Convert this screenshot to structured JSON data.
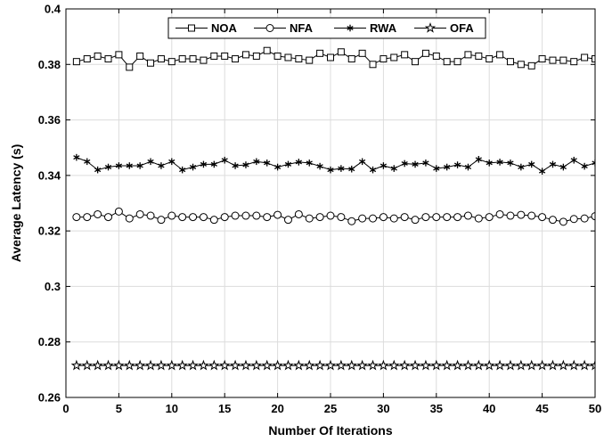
{
  "chart_data": {
    "type": "line",
    "xlabel": "Number Of Iterations",
    "ylabel": "Average Latency (s)",
    "xlim": [
      0,
      50
    ],
    "ylim": [
      0.26,
      0.4
    ],
    "xticks": [
      "0",
      "5",
      "10",
      "15",
      "20",
      "25",
      "30",
      "35",
      "40",
      "45",
      "50"
    ],
    "yticks": [
      "0.26",
      "0.28",
      "0.3",
      "0.32",
      "0.34",
      "0.36",
      "0.38",
      "0.4"
    ],
    "grid": true,
    "legend_position": "top",
    "x": [
      1,
      2,
      3,
      4,
      5,
      6,
      7,
      8,
      9,
      10,
      11,
      12,
      13,
      14,
      15,
      16,
      17,
      18,
      19,
      20,
      21,
      22,
      23,
      24,
      25,
      26,
      27,
      28,
      29,
      30,
      31,
      32,
      33,
      34,
      35,
      36,
      37,
      38,
      39,
      40,
      41,
      42,
      43,
      44,
      45,
      46,
      47,
      48,
      49,
      50
    ],
    "series": [
      {
        "name": "NOA",
        "marker": "square",
        "values": [
          0.381,
          0.382,
          0.383,
          0.382,
          0.3835,
          0.379,
          0.383,
          0.3805,
          0.382,
          0.381,
          0.382,
          0.382,
          0.3815,
          0.383,
          0.383,
          0.382,
          0.3835,
          0.383,
          0.385,
          0.383,
          0.3825,
          0.382,
          0.3815,
          0.384,
          0.3825,
          0.3845,
          0.382,
          0.384,
          0.38,
          0.382,
          0.3825,
          0.3835,
          0.381,
          0.384,
          0.383,
          0.381,
          0.381,
          0.3835,
          0.383,
          0.382,
          0.3835,
          0.381,
          0.38,
          0.3795,
          0.382,
          0.3815,
          0.3815,
          0.381,
          0.3825,
          0.382
        ]
      },
      {
        "name": "NFA",
        "marker": "circle",
        "values": [
          0.325,
          0.325,
          0.326,
          0.325,
          0.327,
          0.3245,
          0.326,
          0.3255,
          0.324,
          0.3255,
          0.325,
          0.325,
          0.325,
          0.324,
          0.325,
          0.3255,
          0.3255,
          0.3255,
          0.325,
          0.3258,
          0.324,
          0.326,
          0.3245,
          0.325,
          0.3255,
          0.325,
          0.3235,
          0.3245,
          0.3245,
          0.325,
          0.3245,
          0.325,
          0.324,
          0.325,
          0.325,
          0.325,
          0.325,
          0.3255,
          0.3245,
          0.325,
          0.326,
          0.3255,
          0.3258,
          0.3255,
          0.325,
          0.324,
          0.3233,
          0.3243,
          0.3245,
          0.3253
        ]
      },
      {
        "name": "RWA",
        "marker": "star6",
        "values": [
          0.3465,
          0.345,
          0.342,
          0.343,
          0.3435,
          0.3435,
          0.3435,
          0.345,
          0.3435,
          0.345,
          0.342,
          0.343,
          0.344,
          0.344,
          0.3455,
          0.3435,
          0.3438,
          0.345,
          0.3445,
          0.343,
          0.344,
          0.3448,
          0.3445,
          0.3433,
          0.342,
          0.3425,
          0.3423,
          0.345,
          0.342,
          0.3435,
          0.3425,
          0.3443,
          0.344,
          0.3445,
          0.3425,
          0.343,
          0.3438,
          0.343,
          0.3458,
          0.3445,
          0.3448,
          0.3445,
          0.343,
          0.344,
          0.3415,
          0.344,
          0.343,
          0.3455,
          0.3433,
          0.3445
        ]
      },
      {
        "name": "OFA",
        "marker": "pentagram",
        "values": [
          0.2715,
          0.2715,
          0.2715,
          0.2715,
          0.2715,
          0.2715,
          0.2715,
          0.2715,
          0.2715,
          0.2715,
          0.2715,
          0.2715,
          0.2715,
          0.2715,
          0.2715,
          0.2715,
          0.2715,
          0.2715,
          0.2715,
          0.2715,
          0.2715,
          0.2715,
          0.2715,
          0.2715,
          0.2715,
          0.2715,
          0.2715,
          0.2715,
          0.2715,
          0.2715,
          0.2715,
          0.2715,
          0.2715,
          0.2715,
          0.2715,
          0.2715,
          0.2715,
          0.2715,
          0.2715,
          0.2715,
          0.2715,
          0.2715,
          0.2715,
          0.2715,
          0.2715,
          0.2715,
          0.2715,
          0.2715,
          0.2715,
          0.2715
        ]
      }
    ]
  }
}
